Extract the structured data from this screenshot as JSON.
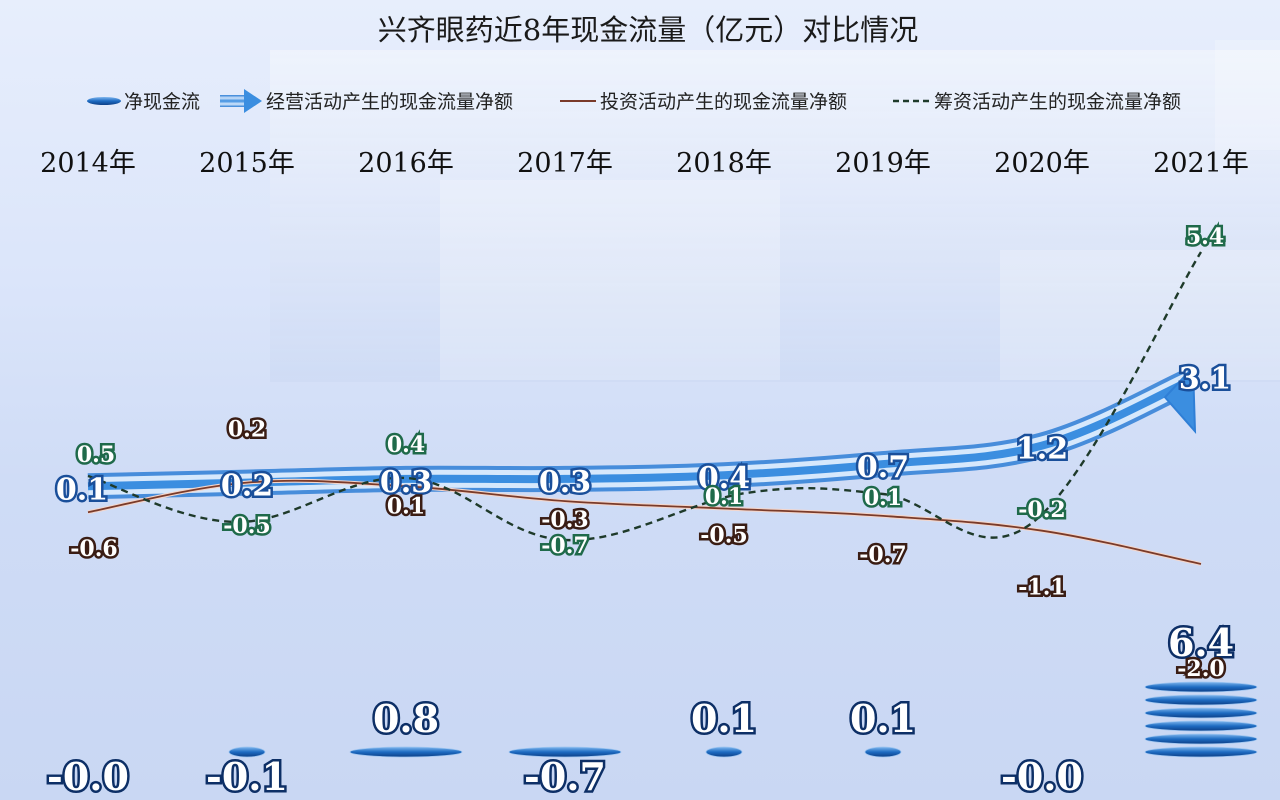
{
  "chart_data": {
    "type": "line",
    "title": "兴齐眼药近8年现金流量（亿元）对比情况",
    "categories": [
      "2014年",
      "2015年",
      "2016年",
      "2017年",
      "2018年",
      "2019年",
      "2020年",
      "2021年"
    ],
    "legend": {
      "placement": "top",
      "items": [
        "净现金流",
        "经营活动产生的现金流量净额",
        "投资活动产生的现金流量净额",
        "筹资活动产生的现金流量净额"
      ]
    },
    "series": [
      {
        "name": "净现金流",
        "kind": "ellipse-stack",
        "color": "#1f6fc4",
        "values": [
          -0.0,
          -0.1,
          0.8,
          -0.7,
          0.1,
          0.1,
          -0.0,
          6.4
        ],
        "labels": [
          "-0.0",
          "-0.1",
          "0.8",
          "-0.7",
          "0.1",
          "0.1",
          "-0.0",
          "6.4"
        ]
      },
      {
        "name": "经营活动产生的现金流量净额",
        "kind": "arrow-band",
        "color": "#3d8fe0",
        "values": [
          0.1,
          0.2,
          0.3,
          0.3,
          0.4,
          0.7,
          1.2,
          3.1
        ],
        "labels": [
          "0.1",
          "0.2",
          "0.3",
          "0.3",
          "0.4",
          "0.7",
          "1.2",
          "3.1"
        ]
      },
      {
        "name": "投资活动产生的现金流量净额",
        "kind": "line",
        "color": "#7a3b2a",
        "values": [
          -0.6,
          0.2,
          0.1,
          -0.3,
          -0.5,
          -0.7,
          -1.1,
          -2.0
        ],
        "labels": [
          "-0.6",
          "0.2",
          "0.1",
          "-0.3",
          "-0.5",
          "-0.7",
          "-1.1",
          "-2.0"
        ]
      },
      {
        "name": "筹资活动产生的现金流量净额",
        "kind": "dashed-line",
        "color": "#1e3a2a",
        "values": [
          0.5,
          -0.5,
          0.4,
          -0.7,
          0.1,
          0.1,
          -0.2,
          5.4
        ],
        "labels": [
          "0.5",
          "-0.5",
          "0.4",
          "-0.7",
          "0.1",
          "0.1",
          "-0.2",
          "5.4"
        ]
      }
    ],
    "grid": false,
    "colors": {
      "label_fill_net": "#ffffff",
      "label_stroke_net": "#0d2f66",
      "label_stroke_op": "#1a4f9a",
      "label_bg_inv": "#3a1d14",
      "label_bg_fin": "#1f6a4a"
    }
  }
}
